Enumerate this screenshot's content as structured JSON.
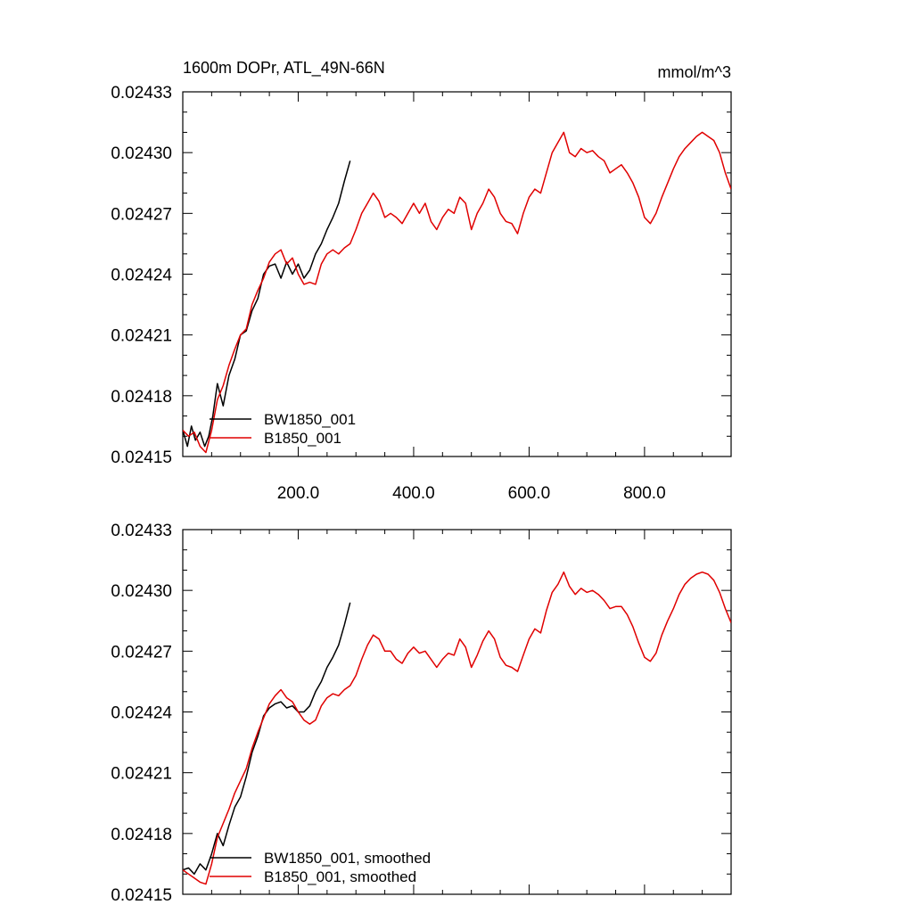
{
  "chart_data": [
    {
      "type": "line",
      "title": "1600m DOPr, ATL_49N-66N",
      "units": "mmol/m^3",
      "xlim": [
        0,
        950
      ],
      "ylim": [
        0.02415,
        0.02433
      ],
      "yticks": [
        "0.02415",
        "0.02418",
        "0.02421",
        "0.02424",
        "0.02427",
        "0.02430",
        "0.02433"
      ],
      "xticks": [
        "200.0",
        "400.0",
        "600.0",
        "800.0"
      ],
      "legend": "bottom-left",
      "grid": false,
      "series": [
        {
          "name": "BW1850_001",
          "color": "#000000",
          "x": [
            0,
            8,
            15,
            22,
            30,
            38,
            45,
            52,
            60,
            70,
            80,
            90,
            100,
            110,
            120,
            130,
            140,
            150,
            160,
            170,
            180,
            190,
            200,
            210,
            220,
            230,
            240,
            250,
            260,
            270,
            280,
            290
          ],
          "y": [
            0.024163,
            0.024155,
            0.024165,
            0.024158,
            0.024162,
            0.024155,
            0.02416,
            0.02417,
            0.024186,
            0.024175,
            0.02419,
            0.024198,
            0.02421,
            0.024212,
            0.024222,
            0.024228,
            0.02424,
            0.024244,
            0.024245,
            0.024238,
            0.024246,
            0.02424,
            0.024245,
            0.024238,
            0.024242,
            0.02425,
            0.024255,
            0.024262,
            0.024268,
            0.024275,
            0.024286,
            0.024296
          ]
        },
        {
          "name": "B1850_001",
          "color": "#e00000",
          "x": [
            0,
            10,
            20,
            30,
            40,
            50,
            60,
            70,
            80,
            90,
            100,
            110,
            120,
            130,
            140,
            150,
            160,
            170,
            180,
            190,
            200,
            210,
            220,
            230,
            240,
            250,
            260,
            270,
            280,
            290,
            300,
            310,
            320,
            330,
            340,
            350,
            360,
            370,
            380,
            390,
            400,
            410,
            420,
            430,
            440,
            450,
            460,
            470,
            480,
            490,
            500,
            510,
            520,
            530,
            540,
            550,
            560,
            570,
            580,
            590,
            600,
            610,
            620,
            630,
            640,
            650,
            660,
            670,
            680,
            690,
            700,
            710,
            720,
            730,
            740,
            750,
            760,
            770,
            780,
            790,
            800,
            810,
            820,
            830,
            840,
            850,
            860,
            870,
            880,
            890,
            900,
            910,
            920,
            930,
            940,
            950
          ],
          "y": [
            0.024163,
            0.02416,
            0.024162,
            0.024155,
            0.024152,
            0.024163,
            0.024178,
            0.024185,
            0.024195,
            0.024203,
            0.02421,
            0.024213,
            0.024225,
            0.024232,
            0.024238,
            0.024246,
            0.02425,
            0.024252,
            0.024245,
            0.024248,
            0.02424,
            0.024235,
            0.024236,
            0.024235,
            0.024245,
            0.02425,
            0.024252,
            0.02425,
            0.024253,
            0.024255,
            0.024262,
            0.02427,
            0.024275,
            0.02428,
            0.024276,
            0.024268,
            0.02427,
            0.024268,
            0.024265,
            0.02427,
            0.024275,
            0.02427,
            0.024275,
            0.024266,
            0.024262,
            0.024268,
            0.024272,
            0.02427,
            0.024278,
            0.024275,
            0.024262,
            0.02427,
            0.024275,
            0.024282,
            0.024278,
            0.02427,
            0.024266,
            0.024265,
            0.02426,
            0.02427,
            0.024278,
            0.024282,
            0.02428,
            0.02429,
            0.0243,
            0.024305,
            0.02431,
            0.0243,
            0.024298,
            0.024302,
            0.0243,
            0.024301,
            0.024298,
            0.024296,
            0.02429,
            0.024292,
            0.024294,
            0.02429,
            0.024285,
            0.024278,
            0.024268,
            0.024265,
            0.02427,
            0.024278,
            0.024285,
            0.024292,
            0.024298,
            0.024302,
            0.024305,
            0.024308,
            0.02431,
            0.024308,
            0.024306,
            0.0243,
            0.02429,
            0.024282
          ]
        }
      ]
    },
    {
      "type": "line",
      "title": "",
      "units": "",
      "xlim": [
        0,
        950
      ],
      "ylim": [
        0.02415,
        0.02433
      ],
      "yticks": [
        "0.02415",
        "0.02418",
        "0.02421",
        "0.02424",
        "0.02427",
        "0.02430",
        "0.02433"
      ],
      "xticks": [],
      "legend": "bottom-left",
      "grid": false,
      "series": [
        {
          "name": "BW1850_001, smoothed",
          "color": "#000000",
          "x": [
            0,
            10,
            20,
            30,
            40,
            50,
            60,
            70,
            80,
            90,
            100,
            110,
            120,
            130,
            140,
            150,
            160,
            170,
            180,
            190,
            200,
            210,
            220,
            230,
            240,
            250,
            260,
            270,
            280,
            290
          ],
          "y": [
            0.024162,
            0.024163,
            0.02416,
            0.024165,
            0.024162,
            0.02417,
            0.02418,
            0.024174,
            0.024184,
            0.024193,
            0.024198,
            0.024208,
            0.02422,
            0.024228,
            0.024238,
            0.024242,
            0.024244,
            0.024245,
            0.024242,
            0.024243,
            0.02424,
            0.02424,
            0.024243,
            0.02425,
            0.024255,
            0.024262,
            0.024267,
            0.024273,
            0.024283,
            0.024294
          ]
        },
        {
          "name": "B1850_001, smoothed",
          "color": "#e00000",
          "x": [
            0,
            10,
            20,
            30,
            40,
            50,
            60,
            70,
            80,
            90,
            100,
            110,
            120,
            130,
            140,
            150,
            160,
            170,
            180,
            190,
            200,
            210,
            220,
            230,
            240,
            250,
            260,
            270,
            280,
            290,
            300,
            310,
            320,
            330,
            340,
            350,
            360,
            370,
            380,
            390,
            400,
            410,
            420,
            430,
            440,
            450,
            460,
            470,
            480,
            490,
            500,
            510,
            520,
            530,
            540,
            550,
            560,
            570,
            580,
            590,
            600,
            610,
            620,
            630,
            640,
            650,
            660,
            670,
            680,
            690,
            700,
            710,
            720,
            730,
            740,
            750,
            760,
            770,
            780,
            790,
            800,
            810,
            820,
            830,
            840,
            850,
            860,
            870,
            880,
            890,
            900,
            910,
            920,
            930,
            940,
            950
          ],
          "y": [
            0.024162,
            0.02416,
            0.024158,
            0.024156,
            0.024155,
            0.024165,
            0.024178,
            0.024185,
            0.024192,
            0.0242,
            0.024206,
            0.024212,
            0.024222,
            0.02423,
            0.024237,
            0.024244,
            0.024248,
            0.024251,
            0.024247,
            0.024245,
            0.02424,
            0.024236,
            0.024234,
            0.024236,
            0.024243,
            0.024247,
            0.024249,
            0.024248,
            0.024251,
            0.024253,
            0.024258,
            0.024266,
            0.024273,
            0.024278,
            0.024276,
            0.02427,
            0.02427,
            0.024266,
            0.024264,
            0.024269,
            0.024272,
            0.024269,
            0.02427,
            0.024266,
            0.024262,
            0.024266,
            0.024269,
            0.024268,
            0.024276,
            0.024272,
            0.024262,
            0.024268,
            0.024275,
            0.02428,
            0.024276,
            0.024267,
            0.024263,
            0.024262,
            0.02426,
            0.024268,
            0.024276,
            0.024281,
            0.024279,
            0.02429,
            0.024299,
            0.024303,
            0.024309,
            0.024302,
            0.024298,
            0.024301,
            0.024299,
            0.0243,
            0.024298,
            0.024295,
            0.024291,
            0.024292,
            0.024292,
            0.024288,
            0.024282,
            0.024274,
            0.024267,
            0.024265,
            0.024269,
            0.024278,
            0.024285,
            0.024291,
            0.024298,
            0.024303,
            0.024306,
            0.024308,
            0.024309,
            0.024308,
            0.024305,
            0.024299,
            0.024291,
            0.024284
          ]
        }
      ]
    }
  ]
}
